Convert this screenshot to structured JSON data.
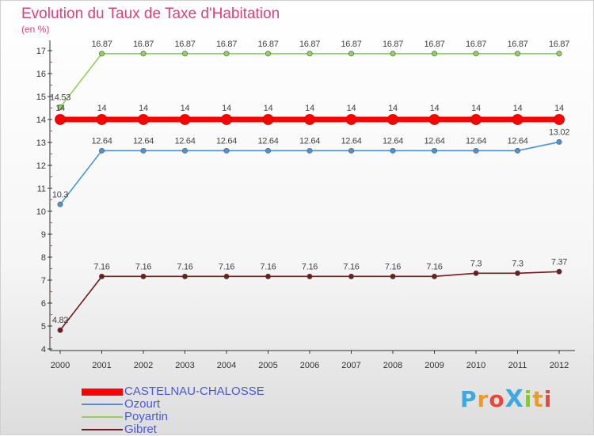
{
  "chart_data": {
    "type": "line",
    "title": "Evolution du Taux de Taxe d'Habitation",
    "ylabel": "(en %)",
    "xlabel": "",
    "x": [
      "2000",
      "2001",
      "2002",
      "2003",
      "2004",
      "2005",
      "2006",
      "2007",
      "2008",
      "2009",
      "2010",
      "2011",
      "2012"
    ],
    "ylim": [
      4,
      17
    ],
    "yticks": [
      4,
      5,
      6,
      7,
      8,
      9,
      10,
      11,
      12,
      13,
      14,
      15,
      16,
      17
    ],
    "grid": false,
    "legend_position": "bottom-left",
    "series": [
      {
        "name": "CASTELNAU-CHALOSSE",
        "color": "#ff0000",
        "values": [
          14,
          14,
          14,
          14,
          14,
          14,
          14,
          14,
          14,
          14,
          14,
          14,
          14
        ],
        "labels": [
          "14",
          "14",
          "14",
          "14",
          "14",
          "14",
          "14",
          "14",
          "14",
          "14",
          "14",
          "14",
          "14"
        ]
      },
      {
        "name": "Ozourt",
        "color": "#4f92d0",
        "values": [
          10.3,
          12.64,
          12.64,
          12.64,
          12.64,
          12.64,
          12.64,
          12.64,
          12.64,
          12.64,
          12.64,
          12.64,
          13.02
        ],
        "labels": [
          "10.3",
          "12.64",
          "12.64",
          "12.64",
          "12.64",
          "12.64",
          "12.64",
          "12.64",
          "12.64",
          "12.64",
          "12.64",
          "12.64",
          "13.02"
        ]
      },
      {
        "name": "Poyartin",
        "color": "#8fd15a",
        "values": [
          14.53,
          16.87,
          16.87,
          16.87,
          16.87,
          16.87,
          16.87,
          16.87,
          16.87,
          16.87,
          16.87,
          16.87,
          16.87
        ],
        "labels": [
          "14.53",
          "16.87",
          "16.87",
          "16.87",
          "16.87",
          "16.87",
          "16.87",
          "16.87",
          "16.87",
          "16.87",
          "16.87",
          "16.87",
          "16.87"
        ]
      },
      {
        "name": "Gibret",
        "color": "#6e1c1c",
        "values": [
          4.82,
          7.16,
          7.16,
          7.16,
          7.16,
          7.16,
          7.16,
          7.16,
          7.16,
          7.16,
          7.3,
          7.3,
          7.37
        ],
        "labels": [
          "4.82",
          "7.16",
          "7.16",
          "7.16",
          "7.16",
          "7.16",
          "7.16",
          "7.16",
          "7.16",
          "7.16",
          "7.3",
          "7.3",
          "7.37"
        ]
      }
    ]
  },
  "logo": {
    "text": "ProXiti",
    "letters": [
      "P",
      "r",
      "o",
      "X",
      "i",
      "t",
      "i"
    ],
    "colors": [
      "#3da9e0",
      "#f39a1e",
      "#e8473c",
      "#3da9e0",
      "#88c440",
      "#f39a1e",
      "#e8473c"
    ]
  }
}
